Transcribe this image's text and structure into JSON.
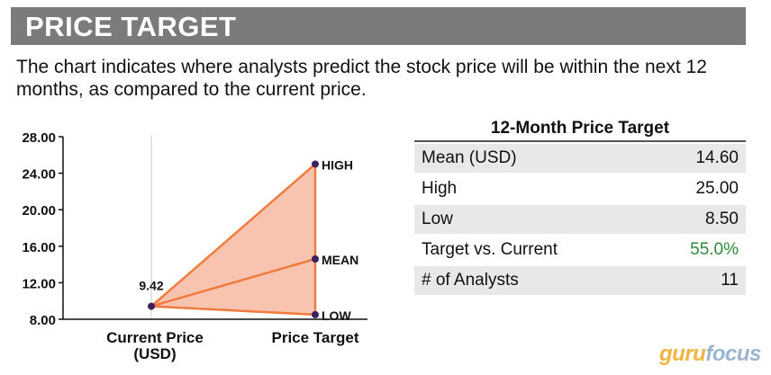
{
  "header": {
    "title": "PRICE TARGET",
    "description": "The chart indicates where analysts predict the stock price will be within the next 12 months, as compared to the current price."
  },
  "chart_data": {
    "type": "area",
    "y_ticks": [
      "28.00",
      "24.00",
      "20.00",
      "16.00",
      "12.00",
      "8.00"
    ],
    "ylim": [
      8,
      28
    ],
    "categories": [
      "Current Price\n(USD)",
      "Price Target"
    ],
    "current_price": 9.42,
    "current_price_label": "9.42",
    "targets": [
      {
        "label": "HIGH",
        "value": 25.0
      },
      {
        "label": "MEAN",
        "value": 14.6
      },
      {
        "label": "LOW",
        "value": 8.5
      }
    ],
    "colors": {
      "fill": "#f8c4b0",
      "line": "#f07b3f",
      "point": "#3b1f5e"
    }
  },
  "table": {
    "title": "12-Month Price Target",
    "rows": [
      {
        "label": "Mean (USD)",
        "value": "14.60"
      },
      {
        "label": "High",
        "value": "25.00"
      },
      {
        "label": "Low",
        "value": "8.50"
      },
      {
        "label": "Target vs. Current",
        "value": "55.0%"
      },
      {
        "label": "# of Analysts",
        "value": "11"
      }
    ],
    "positive_color": "#2e8b3a"
  },
  "logo": {
    "part1": "guru",
    "part2": "focus"
  }
}
